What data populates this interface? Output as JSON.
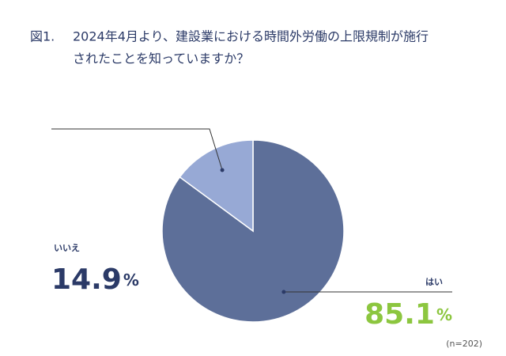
{
  "chart_data": {
    "type": "pie",
    "figure_label": "図1.",
    "title_lines": [
      "2024年4月より、建設業における時間外労働の上限規制が施行",
      "されたことを知っていますか？"
    ],
    "categories": [
      "はい",
      "いいえ"
    ],
    "values": [
      85.1,
      14.9
    ],
    "colors": [
      "#5d6f99",
      "#97a9d5"
    ],
    "label_colors": [
      "#8cc63f",
      "#2b3a67"
    ],
    "unit": "%",
    "note": "(n=202)"
  }
}
